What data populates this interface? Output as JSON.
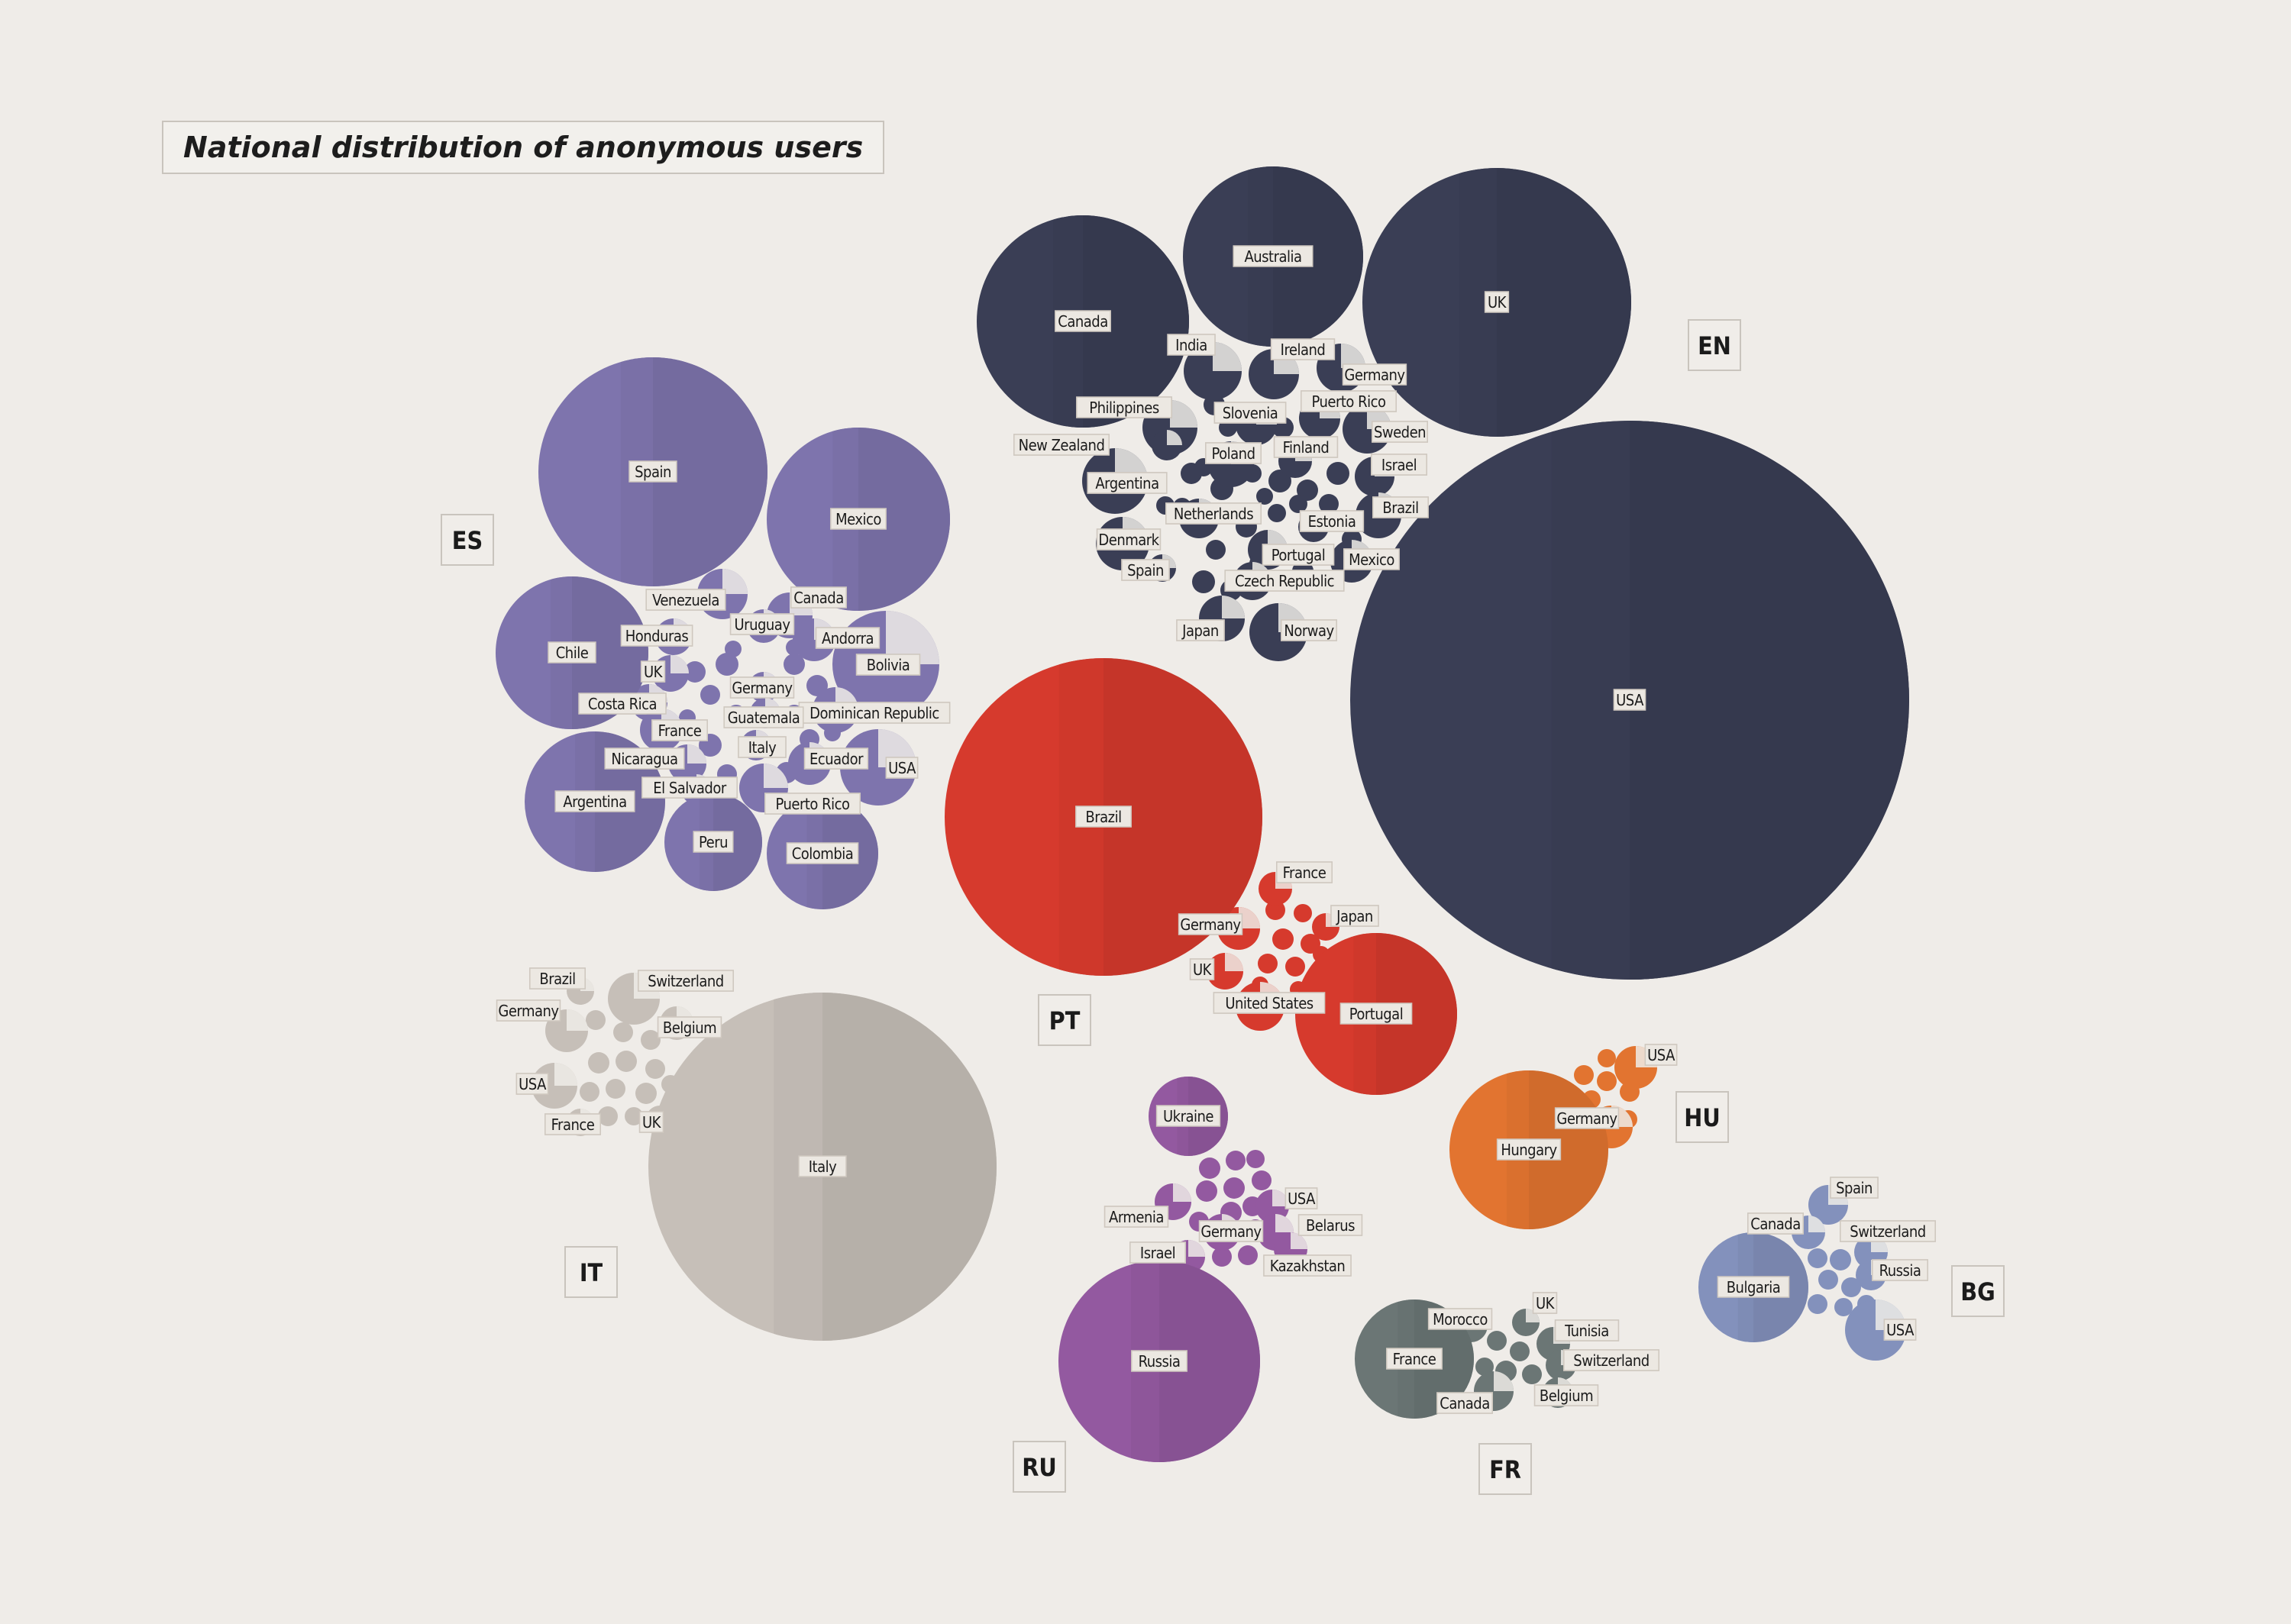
{
  "chart_data": {
    "type": "bubble",
    "title": "National distribution of anonymous users",
    "groups": [
      {
        "label": "EN",
        "color": "#3a3e55",
        "bubbles": [
          {
            "name": "USA",
            "size": 100
          },
          {
            "name": "UK",
            "size": 23
          },
          {
            "name": "Canada",
            "size": 15
          },
          {
            "name": "Australia",
            "size": 10
          },
          {
            "name": "India"
          },
          {
            "name": "Ireland"
          },
          {
            "name": "Germany"
          },
          {
            "name": "Philippines"
          },
          {
            "name": "Slovenia"
          },
          {
            "name": "Puerto Rico"
          },
          {
            "name": "New Zealand"
          },
          {
            "name": "Sweden"
          },
          {
            "name": "Poland"
          },
          {
            "name": "Finland"
          },
          {
            "name": "Argentina"
          },
          {
            "name": "Israel"
          },
          {
            "name": "Netherlands"
          },
          {
            "name": "Estonia"
          },
          {
            "name": "Brazil"
          },
          {
            "name": "Denmark"
          },
          {
            "name": "Portugal"
          },
          {
            "name": "Mexico"
          },
          {
            "name": "Spain"
          },
          {
            "name": "Czech Republic"
          },
          {
            "name": "Japan"
          },
          {
            "name": "Norway"
          }
        ]
      },
      {
        "label": "ES",
        "color": "#7e74ad",
        "bubbles": [
          {
            "name": "Spain",
            "size": 17
          },
          {
            "name": "Mexico",
            "size": 11
          },
          {
            "name": "Chile",
            "size": 8
          },
          {
            "name": "Argentina",
            "size": 6
          },
          {
            "name": "Colombia",
            "size": 3.5
          },
          {
            "name": "Peru",
            "size": 3
          },
          {
            "name": "Venezuela"
          },
          {
            "name": "Canada"
          },
          {
            "name": "Honduras"
          },
          {
            "name": "Uruguay"
          },
          {
            "name": "Andorra"
          },
          {
            "name": "Bolivia"
          },
          {
            "name": "UK"
          },
          {
            "name": "Germany"
          },
          {
            "name": "Costa Rica"
          },
          {
            "name": "Dominican Republic"
          },
          {
            "name": "Guatemala"
          },
          {
            "name": "France"
          },
          {
            "name": "Italy"
          },
          {
            "name": "Nicaragua"
          },
          {
            "name": "Ecuador"
          },
          {
            "name": "USA"
          },
          {
            "name": "El Salvador"
          },
          {
            "name": "Puerto Rico"
          }
        ]
      },
      {
        "label": "PT",
        "color": "#d63a2d",
        "bubbles": [
          {
            "name": "Brazil",
            "size": 33
          },
          {
            "name": "Portugal",
            "size": 8.5
          },
          {
            "name": "France"
          },
          {
            "name": "Japan"
          },
          {
            "name": "Germany"
          },
          {
            "name": "UK"
          },
          {
            "name": "United States"
          }
        ]
      },
      {
        "label": "IT",
        "color": "#c6bfb8",
        "bubbles": [
          {
            "name": "Italy",
            "size": 39
          },
          {
            "name": "Brazil"
          },
          {
            "name": "Switzerland"
          },
          {
            "name": "Germany"
          },
          {
            "name": "Belgium"
          },
          {
            "name": "USA"
          },
          {
            "name": "France"
          },
          {
            "name": "UK"
          }
        ]
      },
      {
        "label": "RU",
        "color": "#9359a0",
        "bubbles": [
          {
            "name": "Russia",
            "size": 13
          },
          {
            "name": "Ukraine",
            "size": 2
          },
          {
            "name": "USA"
          },
          {
            "name": "Armenia"
          },
          {
            "name": "Belarus"
          },
          {
            "name": "Germany"
          },
          {
            "name": "Israel"
          },
          {
            "name": "Kazakhstan"
          }
        ]
      },
      {
        "label": "HU",
        "color": "#e27430",
        "bubbles": [
          {
            "name": "Hungary",
            "size": 8
          },
          {
            "name": "USA"
          },
          {
            "name": "Germany"
          }
        ]
      },
      {
        "label": "FR",
        "color": "#6b7675",
        "bubbles": [
          {
            "name": "France",
            "size": 4.5
          },
          {
            "name": "Morocco"
          },
          {
            "name": "UK"
          },
          {
            "name": "Tunisia"
          },
          {
            "name": "Switzerland"
          },
          {
            "name": "Canada"
          },
          {
            "name": "Belgium"
          }
        ]
      },
      {
        "label": "BG",
        "color": "#8391bc",
        "bubbles": [
          {
            "name": "Bulgaria",
            "size": 4
          },
          {
            "name": "Spain"
          },
          {
            "name": "Canada"
          },
          {
            "name": "Switzerland"
          },
          {
            "name": "Russia"
          },
          {
            "name": "USA"
          }
        ]
      }
    ]
  }
}
